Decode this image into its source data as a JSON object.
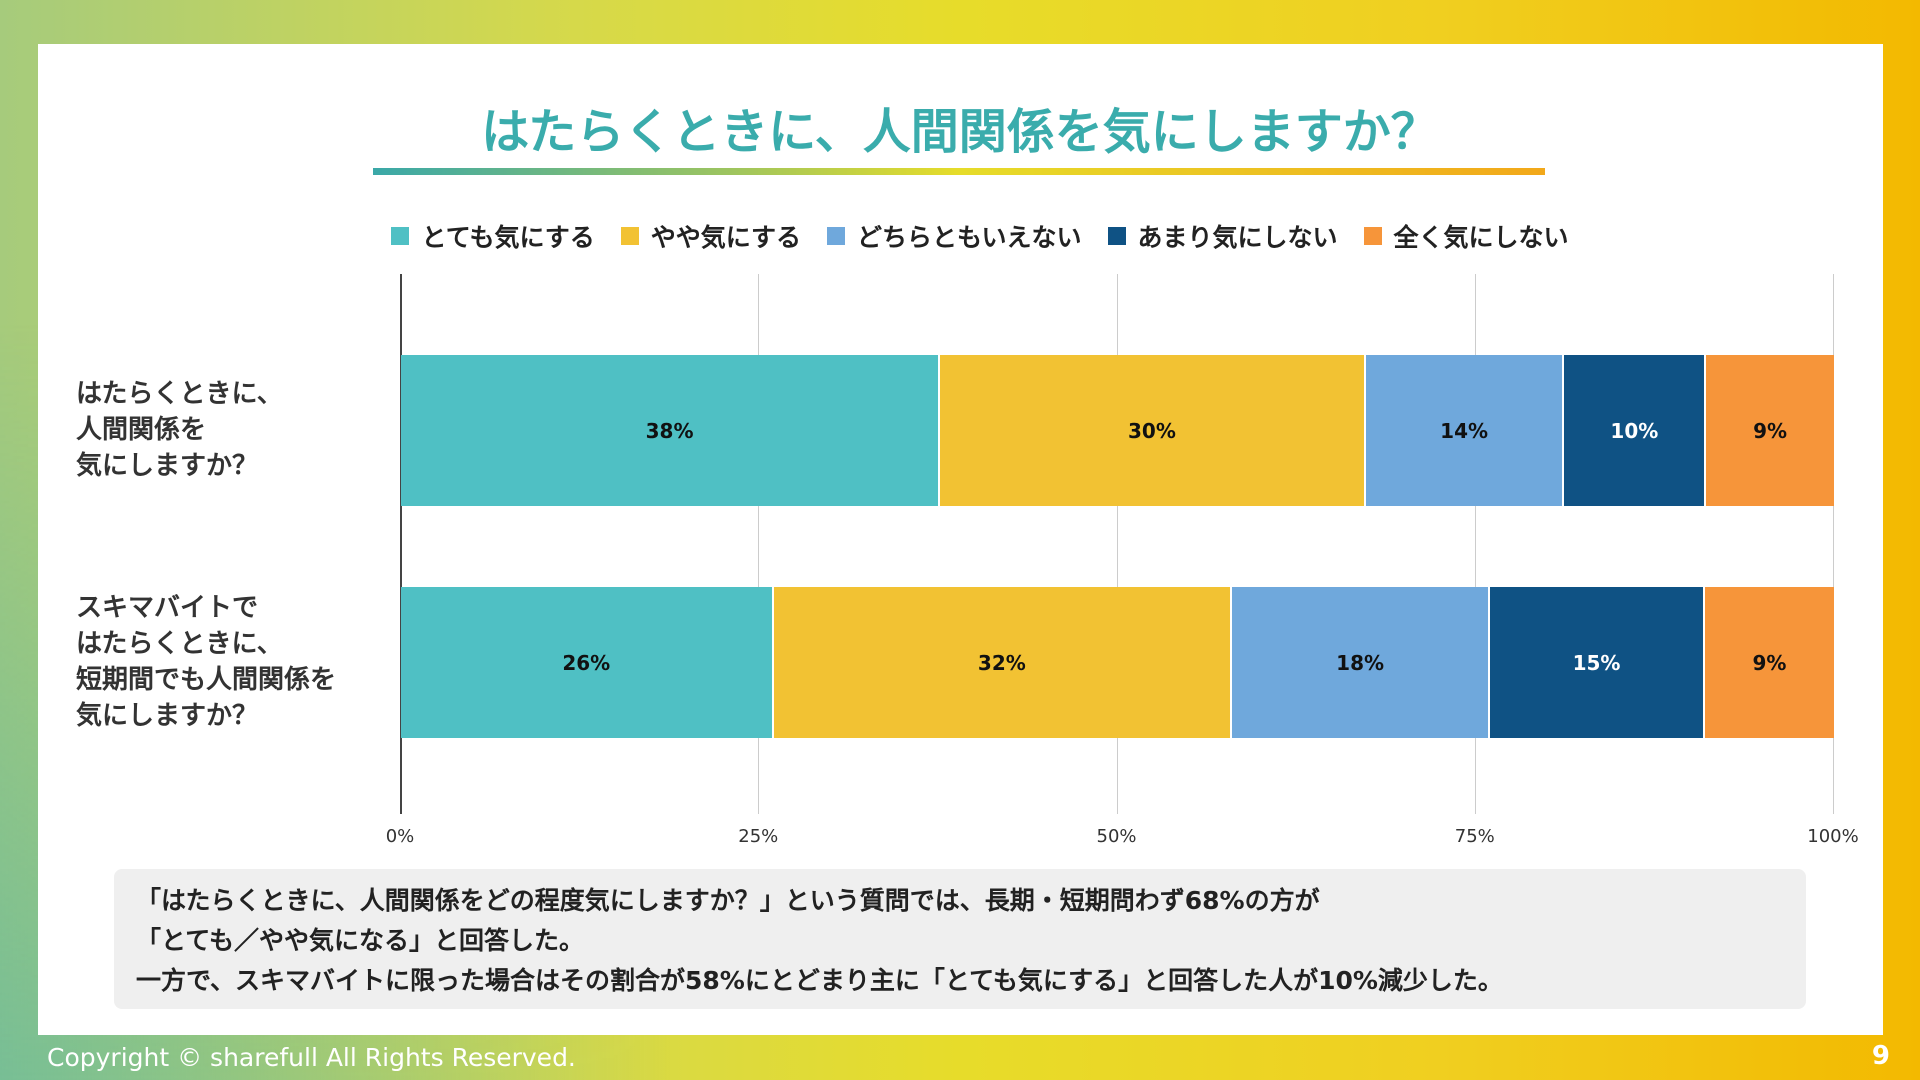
{
  "title": "はたらくときに、人間関係を気にしますか？",
  "chart_data": {
    "type": "bar",
    "orientation": "horizontal-stacked-100",
    "categories": [
      "はたらくときに、\n人間関係を\n気にしますか？",
      "スキマバイトで\nはたらくときに、\n短期間でも人間関係を\n気にしますか？"
    ],
    "category_lines": [
      [
        "はたらくときに、",
        "人間関係を",
        "気にしますか？"
      ],
      [
        "スキマバイトで",
        "はたらくときに、",
        "短期間でも人間関係を",
        "気にしますか？"
      ]
    ],
    "series": [
      {
        "name": "とても気にする",
        "color": "#4fc0c4",
        "values": [
          38,
          26
        ]
      },
      {
        "name": "やや気にする",
        "color": "#f2c233",
        "values": [
          30,
          32
        ]
      },
      {
        "name": "どちらともいえない",
        "color": "#6fa8dc",
        "values": [
          14,
          18
        ]
      },
      {
        "name": "あまり気にしない",
        "color": "#0f5284",
        "values": [
          10,
          15
        ]
      },
      {
        "name": "全く気にしない",
        "color": "#f6953a",
        "values": [
          9,
          9
        ]
      }
    ],
    "xticks": [
      "0%",
      "25%",
      "50%",
      "75%",
      "100%"
    ],
    "xlim": [
      0,
      100
    ],
    "grid": true,
    "legend": "top"
  },
  "note": {
    "lines": [
      "「はたらくときに、人間関係をどの程度気にしますか？」という質問では、長期・短期問わず68%の方が",
      "「とても／やや気になる」と回答した。",
      "一方で、スキマバイトに限った場合はその割合が58%にとどまり主に「とても気にする」と回答した人が10%減少した。"
    ]
  },
  "footer": {
    "copyright": "Copyright © sharefull All Rights Reserved.",
    "page": "9"
  }
}
